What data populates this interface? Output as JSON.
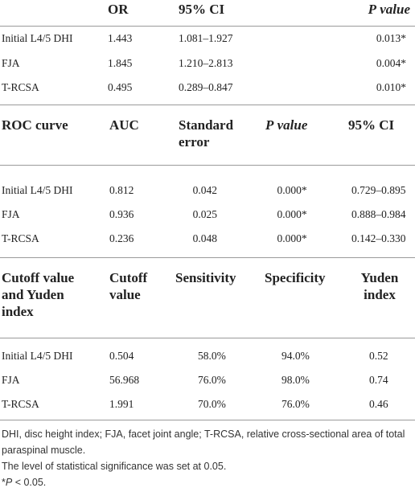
{
  "sections": [
    {
      "header": [
        "OR",
        "95% CI",
        [
          "P",
          "value"
        ]
      ],
      "rows": [
        [
          "Initial L4/5 DHI",
          "1.443",
          "1.081–1.927",
          "0.013*"
        ],
        [
          "FJA",
          "1.845",
          "1.210–2.813",
          "0.004*"
        ],
        [
          "T-RCSA",
          "0.495",
          "0.289–0.847",
          "0.010*"
        ]
      ]
    },
    {
      "header": [
        "ROC curve",
        "AUC",
        "Standard error",
        [
          "P",
          "value"
        ],
        "95% CI"
      ],
      "rows": [
        [
          "Initial L4/5 DHI",
          "0.812",
          "0.042",
          "0.000*",
          "0.729–0.895"
        ],
        [
          "FJA",
          "0.936",
          "0.025",
          "0.000*",
          "0.888–0.984"
        ],
        [
          "T-RCSA",
          "0.236",
          "0.048",
          "0.000*",
          "0.142–0.330"
        ]
      ]
    },
    {
      "header": [
        "Cutoff value and Yuden index",
        "Cutoff value",
        "Sensitivity",
        "Specificity",
        "Yuden index"
      ],
      "rows": [
        [
          "Initial L4/5 DHI",
          "0.504",
          "58.0%",
          "94.0%",
          "0.52"
        ],
        [
          "FJA",
          "56.968",
          "76.0%",
          "98.0%",
          "0.74"
        ],
        [
          "T-RCSA",
          "1.991",
          "70.0%",
          "76.0%",
          "0.46"
        ]
      ]
    }
  ],
  "footnotes": [
    "DHI, disc height index; FJA, facet joint angle; T-RCSA, relative cross-sectional area of total paraspinal muscle.",
    "The level of statistical significance was set at 0.05.",
    [
      "*",
      "P",
      "< 0.05."
    ]
  ]
}
